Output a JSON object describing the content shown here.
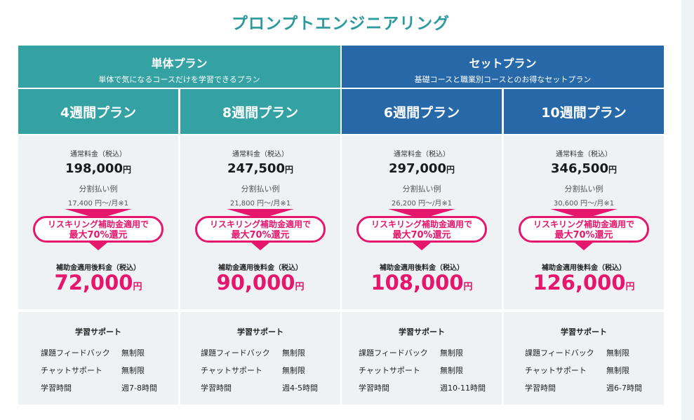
{
  "title": "プロンプトエンジニアリング",
  "groups": [
    {
      "name": "単体プラン",
      "desc": "単体で気になるコースだけを学習できるプラン"
    },
    {
      "name": "セットプラン",
      "desc": "基礎コースと職業別コースとのお得なセットプラン"
    }
  ],
  "labels": {
    "regular_fee": "通常料金（税込）",
    "installment": "分割払い例",
    "subsidy_fee": "補助金適用後料金（税込）",
    "support_title": "学習サポート",
    "yen": "円",
    "badge_line1": "リスキリング補助金適用で",
    "badge_line2": "最大70%還元",
    "feedback": "課題フィードバック",
    "chat": "チャットサポート",
    "study_time": "学習時間",
    "unlimited": "無制限"
  },
  "plans": [
    {
      "name": "4週間プラン",
      "regular_price": "198,000",
      "installment": "17,400 円〜/月※1",
      "subsidy_price": "72,000",
      "study_hours": "週7-8時間",
      "color": "#34a1a3"
    },
    {
      "name": "8週間プラン",
      "regular_price": "247,500",
      "installment": "21,800 円〜/月※1",
      "subsidy_price": "90,000",
      "study_hours": "週4-5時間",
      "color": "#34a1a3"
    },
    {
      "name": "6週間プラン",
      "regular_price": "297,000",
      "installment": "26,200 円〜/月※1",
      "subsidy_price": "108,000",
      "study_hours": "週10-11時間",
      "color": "#2769a8"
    },
    {
      "name": "10週間プラン",
      "regular_price": "346,500",
      "installment": "30,600 円〜/月※1",
      "subsidy_price": "126,000",
      "study_hours": "週6-7時間",
      "color": "#2769a8"
    }
  ],
  "colors": {
    "teal": "#34a1a3",
    "blue": "#2769a8",
    "accent": "#e5166b",
    "panel": "#eef2f5"
  }
}
